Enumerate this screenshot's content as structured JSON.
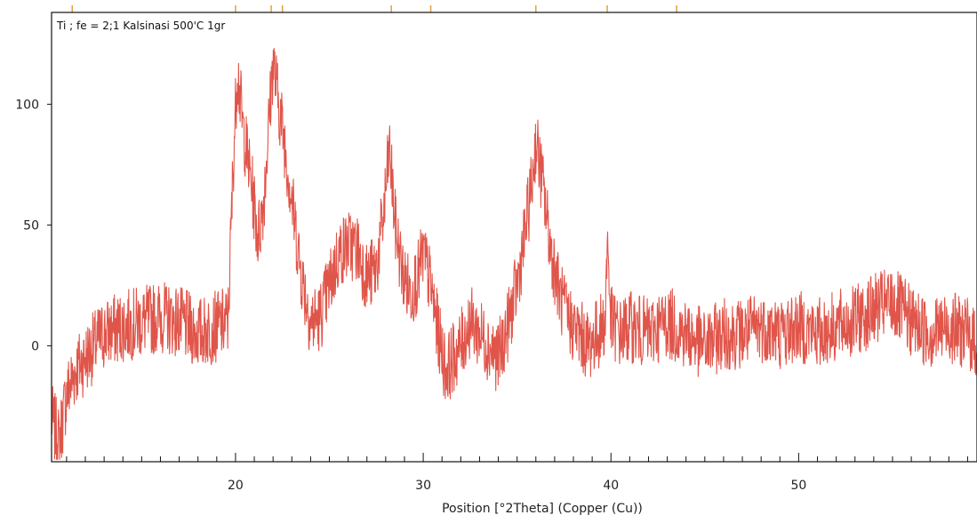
{
  "chart_data": {
    "type": "line",
    "title": "Ti ; fe = 2;1 Kalsinasi 500'C 1gr",
    "xlabel": "Position [°2Theta] (Copper (Cu))",
    "ylabel": "",
    "xlim": [
      10.2,
      59.5
    ],
    "ylim": [
      -48,
      138
    ],
    "xticks": [
      20,
      30,
      40,
      50
    ],
    "yticks": [
      0,
      50,
      100
    ],
    "xtick_labels": [
      "20",
      "30",
      "40",
      "50"
    ],
    "ytick_labels": [
      "0",
      "50",
      "100"
    ],
    "minor_xtick_step": 1,
    "reference_markers": [
      11.3,
      20.0,
      21.9,
      22.5,
      28.3,
      30.4,
      36.0,
      39.8,
      43.5
    ],
    "grid": false,
    "legend": "none",
    "series": [
      {
        "color": "#e0554a",
        "x": [
          10.2,
          10.6,
          11.0,
          11.5,
          12.0,
          13.0,
          14.0,
          15.0,
          16.0,
          17.0,
          18.0,
          19.0,
          19.6,
          19.9,
          20.1,
          20.4,
          20.8,
          21.2,
          21.5,
          21.8,
          22.0,
          22.3,
          22.6,
          23.0,
          23.5,
          24.0,
          24.5,
          25.0,
          25.5,
          26.0,
          26.5,
          27.0,
          27.5,
          27.9,
          28.2,
          28.5,
          28.9,
          29.3,
          29.7,
          30.0,
          30.4,
          30.8,
          31.2,
          31.6,
          32.0,
          32.5,
          33.0,
          33.5,
          34.0,
          34.5,
          35.0,
          35.4,
          35.8,
          36.0,
          36.3,
          36.8,
          37.3,
          37.8,
          38.3,
          38.8,
          39.3,
          39.7,
          39.8,
          40.0,
          40.5,
          41.0,
          42.0,
          43.0,
          44.0,
          45.0,
          46.0,
          47.0,
          48.0,
          49.0,
          50.0,
          51.0,
          52.0,
          53.0,
          54.0,
          55.0,
          56.0,
          57.0,
          58.0,
          59.0,
          59.5
        ],
        "y": [
          -30,
          -40,
          -20,
          -10,
          -5,
          5,
          8,
          10,
          12,
          10,
          5,
          8,
          10,
          80,
          115,
          90,
          70,
          45,
          60,
          95,
          118,
          100,
          85,
          60,
          30,
          10,
          12,
          25,
          38,
          42,
          40,
          28,
          32,
          55,
          82,
          50,
          30,
          22,
          28,
          38,
          25,
          5,
          -10,
          -5,
          0,
          10,
          5,
          0,
          -5,
          8,
          25,
          45,
          68,
          85,
          70,
          40,
          20,
          10,
          5,
          0,
          5,
          10,
          45,
          10,
          5,
          8,
          5,
          10,
          5,
          0,
          5,
          5,
          8,
          5,
          8,
          5,
          8,
          10,
          15,
          18,
          10,
          5,
          8,
          5,
          0
        ]
      }
    ]
  }
}
